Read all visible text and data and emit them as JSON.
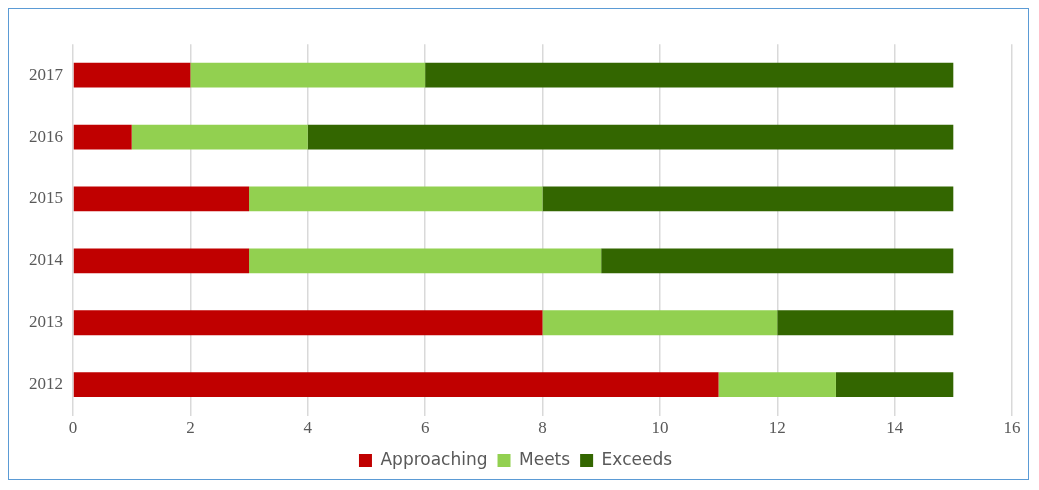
{
  "chart_data": {
    "type": "bar",
    "orientation": "horizontal",
    "stacked": true,
    "categories": [
      "2017",
      "2016",
      "2015",
      "2014",
      "2013",
      "2012"
    ],
    "series": [
      {
        "name": "Approaching",
        "color": "#c00000",
        "values": [
          2,
          1,
          3,
          3,
          8,
          11
        ]
      },
      {
        "name": "Meets",
        "color": "#92d050",
        "values": [
          4,
          3,
          5,
          6,
          4,
          2
        ]
      },
      {
        "name": "Exceeds",
        "color": "#336600",
        "values": [
          9,
          11,
          7,
          6,
          3,
          2
        ]
      }
    ],
    "xlim": [
      0,
      16
    ],
    "xticks": [
      0,
      2,
      4,
      6,
      8,
      10,
      12,
      14,
      16
    ],
    "grid": "x",
    "legend": "bottom"
  }
}
